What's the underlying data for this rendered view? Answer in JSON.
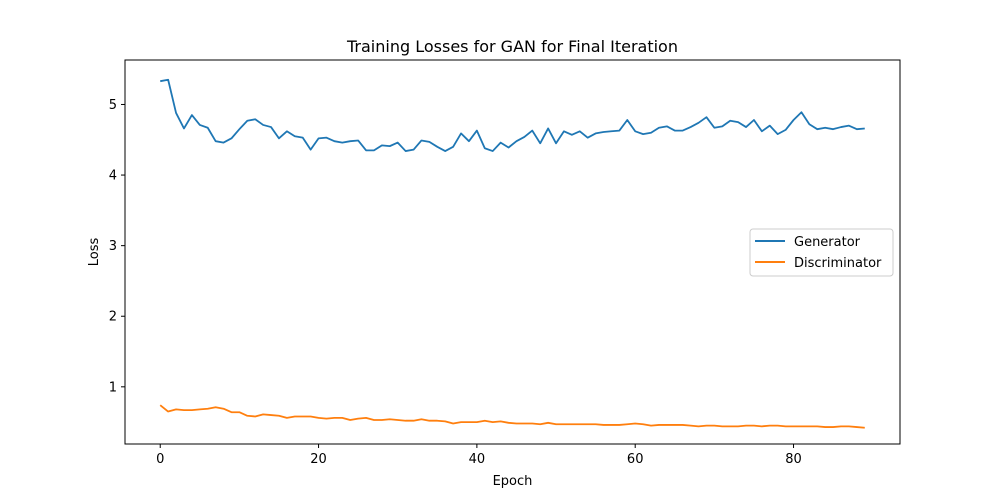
{
  "chart_data": {
    "type": "line",
    "title": "Training Losses for GAN for Final Iteration",
    "xlabel": "Epoch",
    "ylabel": "Loss",
    "xlim": [
      -4.45,
      93.45
    ],
    "ylim": [
      0.19,
      5.63
    ],
    "xticks": [
      0,
      20,
      40,
      60,
      80
    ],
    "yticks": [
      1,
      2,
      3,
      4,
      5
    ],
    "grid": false,
    "legend_position": "center-right",
    "series": [
      {
        "name": "Generator",
        "color": "#1f77b4",
        "values": [
          5.33,
          5.35,
          4.88,
          4.66,
          4.85,
          4.71,
          4.67,
          4.48,
          4.46,
          4.52,
          4.65,
          4.77,
          4.79,
          4.71,
          4.68,
          4.52,
          4.62,
          4.55,
          4.53,
          4.36,
          4.52,
          4.53,
          4.48,
          4.46,
          4.48,
          4.49,
          4.35,
          4.35,
          4.42,
          4.41,
          4.46,
          4.34,
          4.36,
          4.49,
          4.47,
          4.4,
          4.34,
          4.4,
          4.59,
          4.48,
          4.63,
          4.38,
          4.34,
          4.46,
          4.39,
          4.48,
          4.54,
          4.63,
          4.45,
          4.66,
          4.45,
          4.62,
          4.57,
          4.62,
          4.53,
          4.59,
          4.61,
          4.62,
          4.63,
          4.78,
          4.62,
          4.58,
          4.6,
          4.67,
          4.69,
          4.63,
          4.63,
          4.68,
          4.74,
          4.82,
          4.67,
          4.69,
          4.77,
          4.75,
          4.68,
          4.78,
          4.62,
          4.7,
          4.58,
          4.64,
          4.78,
          4.89,
          4.72,
          4.65,
          4.67,
          4.65,
          4.68,
          4.7,
          4.65,
          4.66
        ]
      },
      {
        "name": "Discriminator",
        "color": "#ff7f0e",
        "values": [
          0.74,
          0.65,
          0.68,
          0.67,
          0.67,
          0.68,
          0.69,
          0.71,
          0.69,
          0.64,
          0.64,
          0.59,
          0.58,
          0.61,
          0.6,
          0.59,
          0.56,
          0.58,
          0.58,
          0.58,
          0.56,
          0.55,
          0.56,
          0.56,
          0.53,
          0.55,
          0.56,
          0.53,
          0.53,
          0.54,
          0.53,
          0.52,
          0.52,
          0.54,
          0.52,
          0.52,
          0.51,
          0.48,
          0.5,
          0.5,
          0.5,
          0.52,
          0.5,
          0.51,
          0.49,
          0.48,
          0.48,
          0.48,
          0.47,
          0.49,
          0.47,
          0.47,
          0.47,
          0.47,
          0.47,
          0.47,
          0.46,
          0.46,
          0.46,
          0.47,
          0.48,
          0.47,
          0.45,
          0.46,
          0.46,
          0.46,
          0.46,
          0.45,
          0.44,
          0.45,
          0.45,
          0.44,
          0.44,
          0.44,
          0.45,
          0.45,
          0.44,
          0.45,
          0.45,
          0.44,
          0.44,
          0.44,
          0.44,
          0.44,
          0.43,
          0.43,
          0.44,
          0.44,
          0.43,
          0.42
        ]
      }
    ]
  }
}
